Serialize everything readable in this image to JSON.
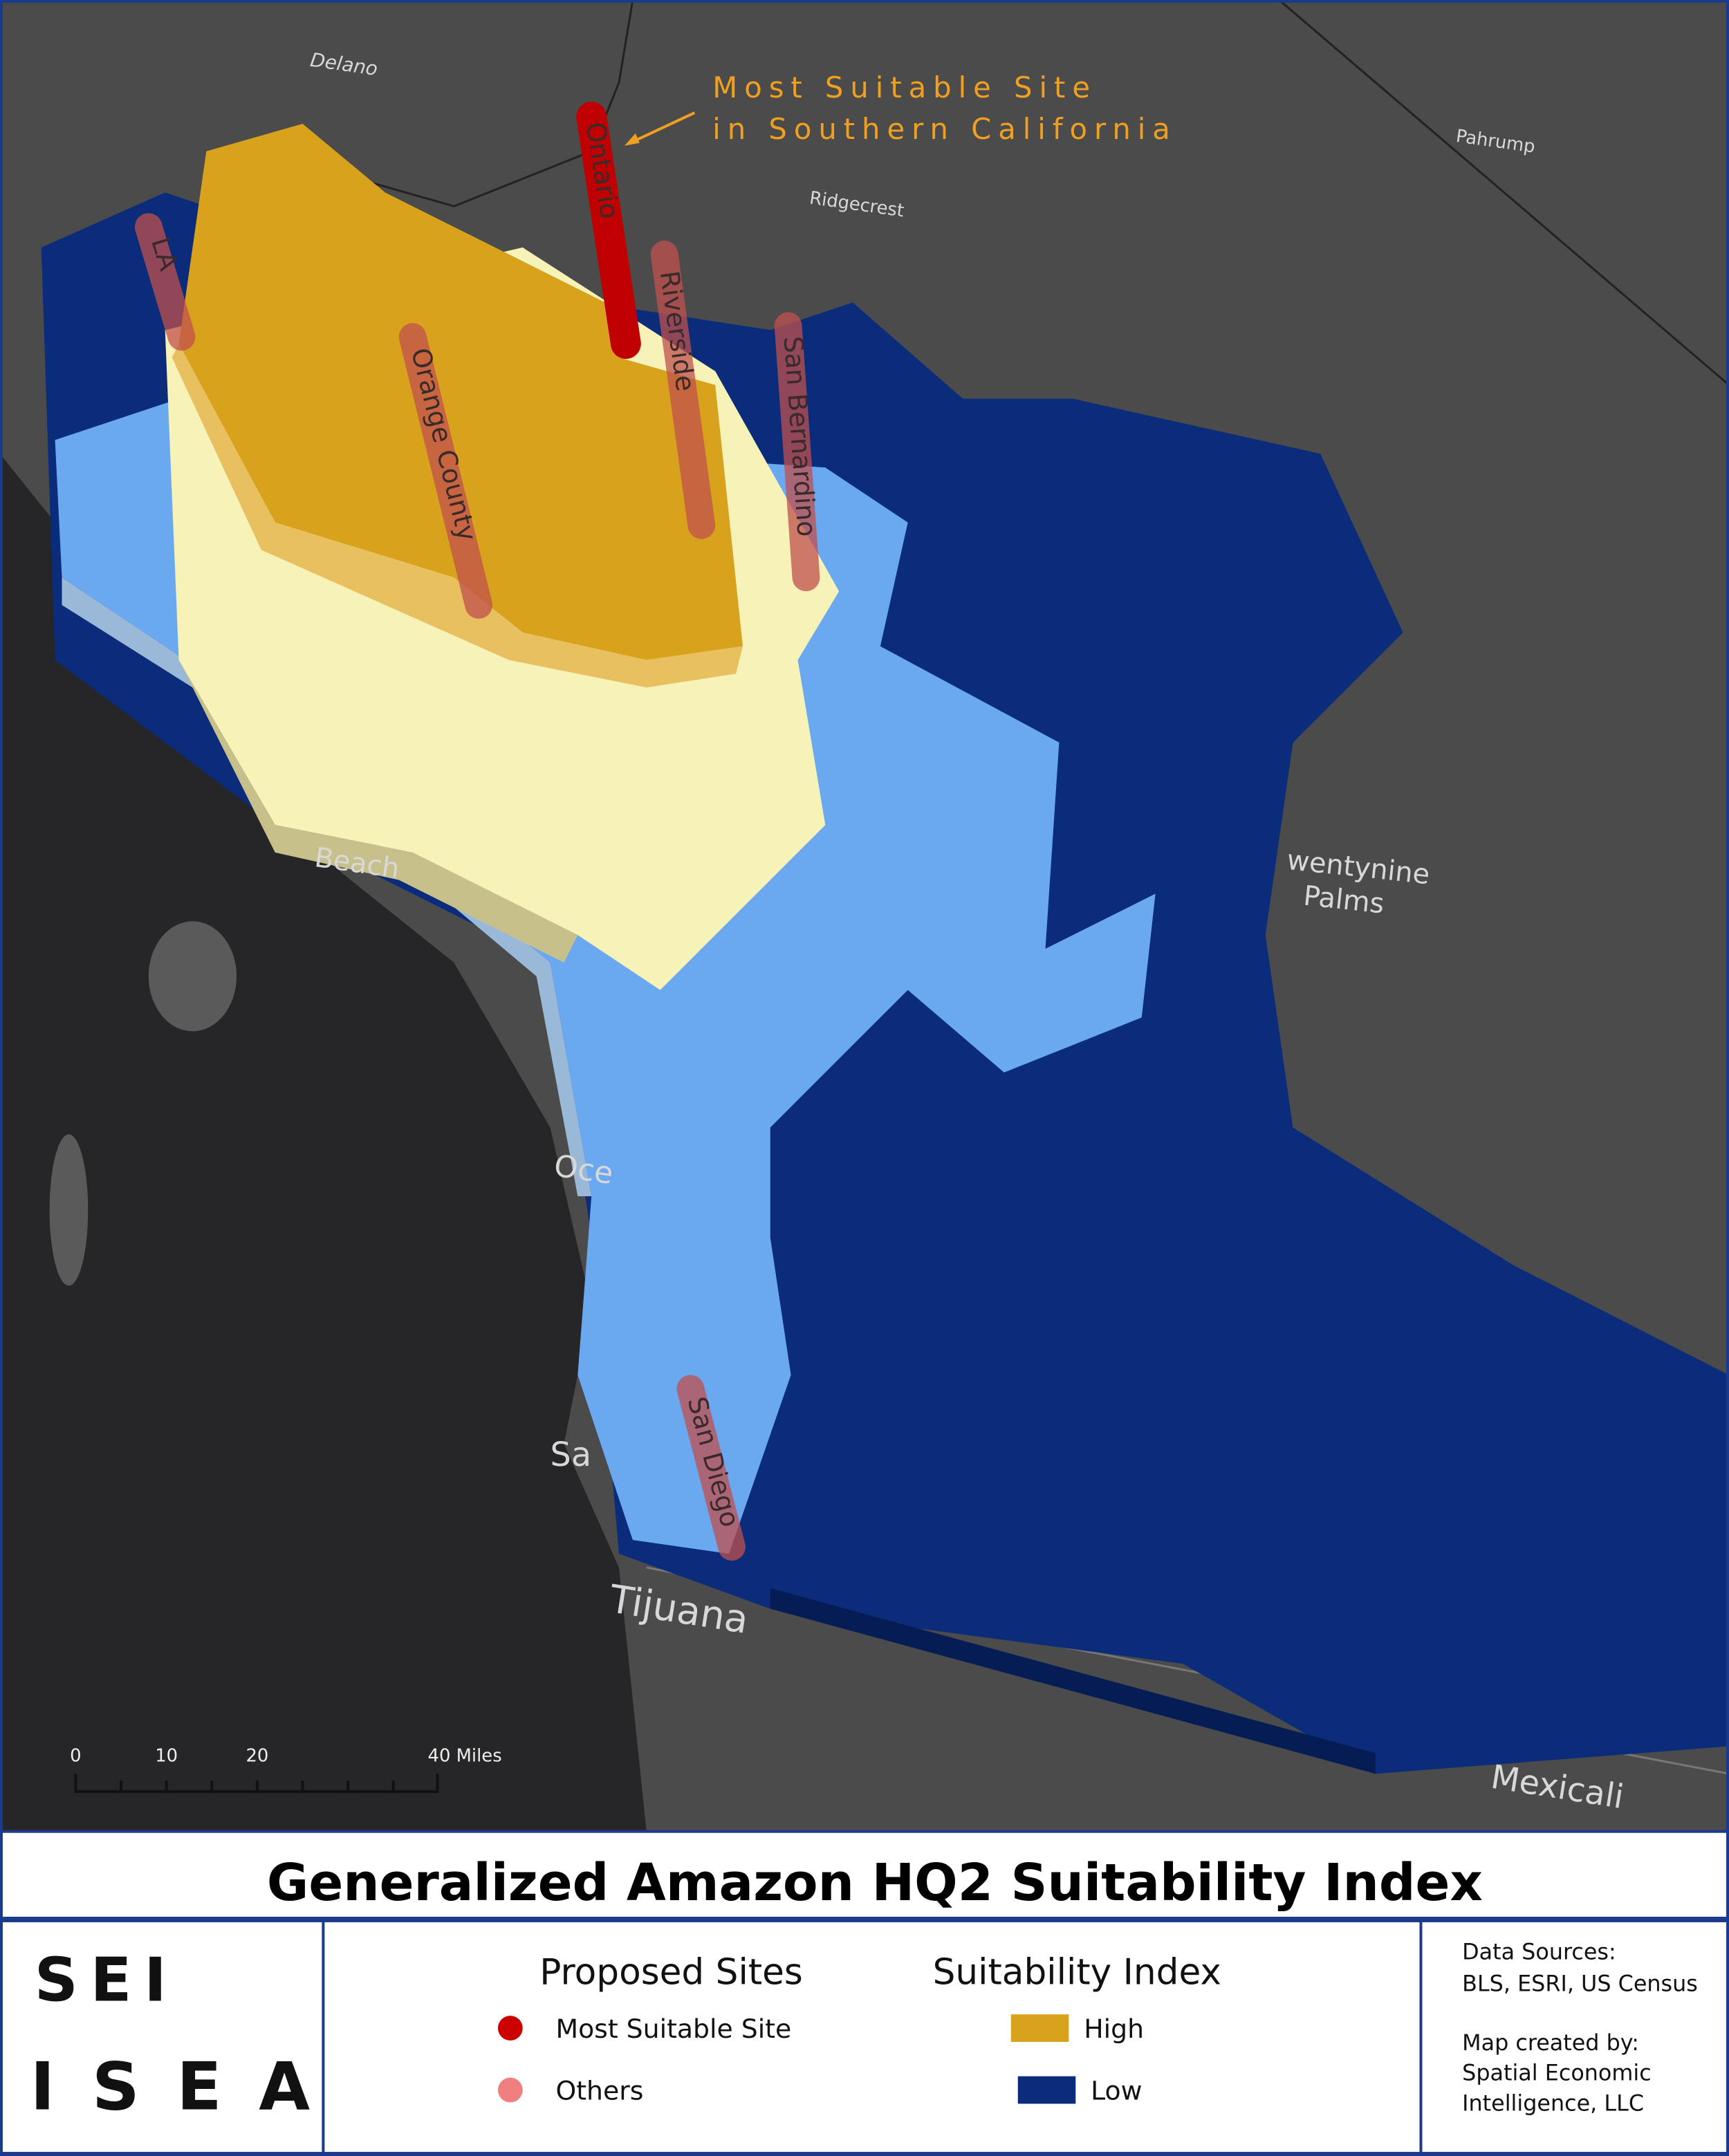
{
  "map": {
    "place_labels": {
      "delano": "Delano",
      "pahrump": "Pahrump",
      "ridgecrest": "Ridgecrest",
      "beach": "Beach",
      "twentynine": "wentynine",
      "palms": "Palms",
      "ocean": "Oce",
      "san": "Sa",
      "tijuana": "Tijuana",
      "mexicali": "Mexicali"
    },
    "annotation": [
      "Most Suitable Site",
      "in Southern California"
    ],
    "sites": {
      "la": "LA",
      "ontario": "Ontario",
      "riverside": "Riverside",
      "san_bernardino": "San Bernardino",
      "orange_county": "Orange County",
      "san_diego": "San Diego"
    },
    "scale_bar": [
      "0",
      "10",
      "20",
      "40 Miles"
    ]
  },
  "title": "Generalized Amazon HQ2 Suitability Index",
  "logo": [
    "SEI",
    "ISEA"
  ],
  "legend": {
    "proposed_sites": {
      "title": "Proposed Sites",
      "items": [
        "Most Suitable Site",
        "Others"
      ]
    },
    "suitability_index": {
      "title": "Suitability Index",
      "items": [
        "High",
        "Low"
      ]
    }
  },
  "credits": {
    "sources_title": "Data Sources:",
    "sources": "BLS, ESRI, US Census",
    "created_title": "Map created by:",
    "created_by": [
      "Spatial Economic",
      "Intelligence, LLC"
    ]
  }
}
